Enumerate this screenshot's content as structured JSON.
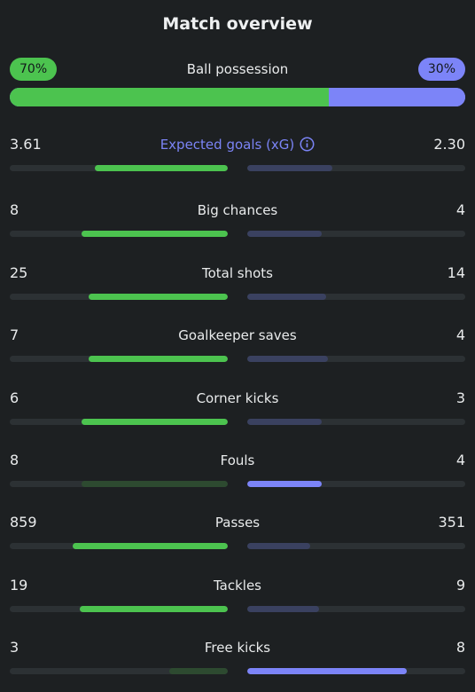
{
  "title": "Match overview",
  "colors": {
    "home_strong": "#4cc34f",
    "home_weak": "#2d4a30",
    "away_strong": "#7c84f8",
    "away_weak": "#3a4160"
  },
  "possession": {
    "label": "Ball possession",
    "home": "70%",
    "away": "30%",
    "home_value": 70,
    "away_value": 30
  },
  "stats": [
    {
      "label": "Expected goals (xG)",
      "home": "3.61",
      "away": "2.30",
      "home_fill": 0.61,
      "away_fill": 0.39,
      "home_style": "strong",
      "away_style": "weak",
      "info": true
    },
    {
      "label": "Big chances",
      "home": "8",
      "away": "4",
      "home_fill": 0.67,
      "away_fill": 0.34,
      "home_style": "strong",
      "away_style": "weak"
    },
    {
      "label": "Total shots",
      "home": "25",
      "away": "14",
      "home_fill": 0.64,
      "away_fill": 0.36,
      "home_style": "strong",
      "away_style": "weak"
    },
    {
      "label": "Goalkeeper saves",
      "home": "7",
      "away": "4",
      "home_fill": 0.64,
      "away_fill": 0.37,
      "home_style": "strong",
      "away_style": "weak"
    },
    {
      "label": "Corner kicks",
      "home": "6",
      "away": "3",
      "home_fill": 0.67,
      "away_fill": 0.34,
      "home_style": "strong",
      "away_style": "weak"
    },
    {
      "label": "Fouls",
      "home": "8",
      "away": "4",
      "home_fill": 0.67,
      "away_fill": 0.34,
      "home_style": "weak",
      "away_style": "strong"
    },
    {
      "label": "Passes",
      "home": "859",
      "away": "351",
      "home_fill": 0.71,
      "away_fill": 0.29,
      "home_style": "strong",
      "away_style": "weak"
    },
    {
      "label": "Tackles",
      "home": "19",
      "away": "9",
      "home_fill": 0.68,
      "away_fill": 0.33,
      "home_style": "strong",
      "away_style": "weak"
    },
    {
      "label": "Free kicks",
      "home": "3",
      "away": "8",
      "home_fill": 0.27,
      "away_fill": 0.73,
      "home_style": "weak",
      "away_style": "strong"
    }
  ]
}
